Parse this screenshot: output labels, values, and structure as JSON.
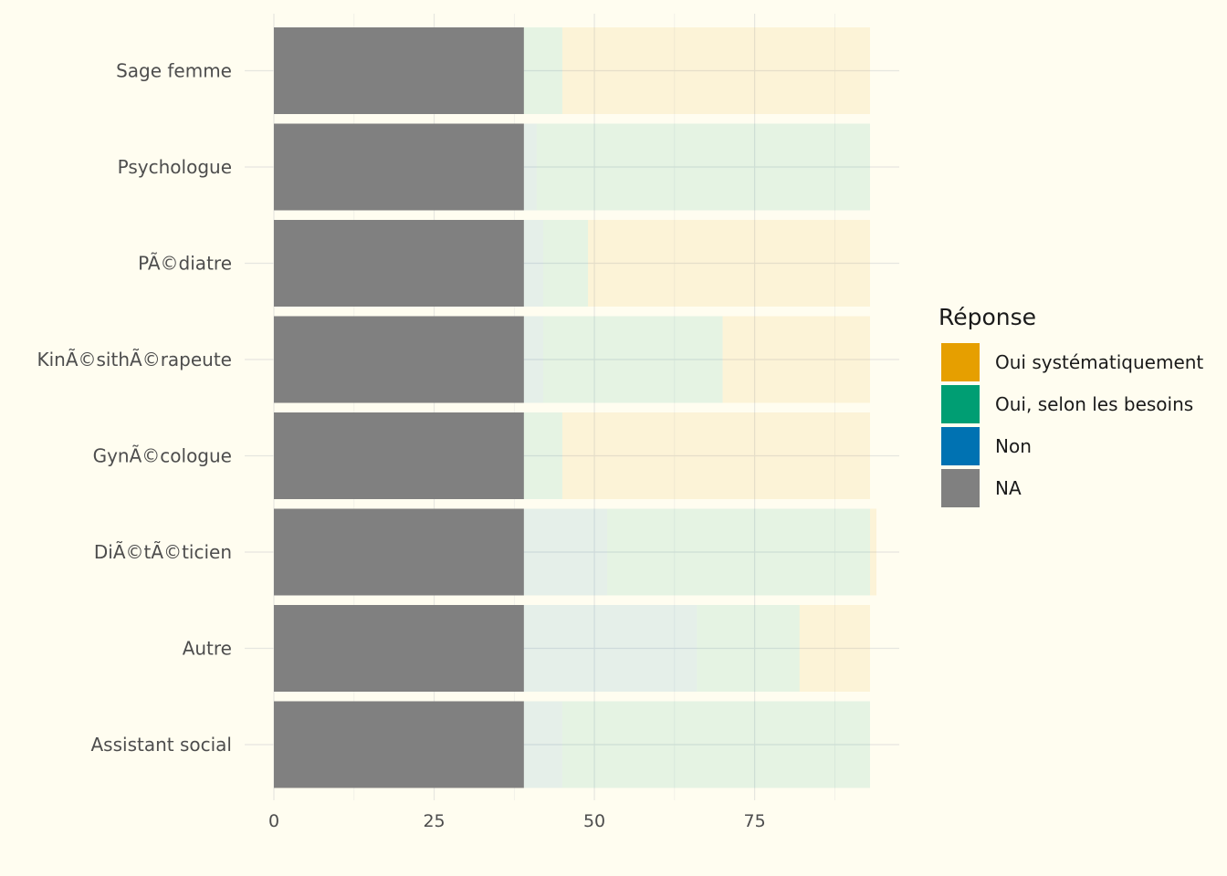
{
  "chart_data": {
    "type": "bar",
    "orientation": "horizontal",
    "stacked": true,
    "categories": [
      "Sage femme",
      "Psychologue",
      "PÃ©diatre",
      "KinÃ©sithÃ©rapeute",
      "GynÃ©cologue",
      "DiÃ©tÃ©ticien",
      "Autre",
      "Assistant social"
    ],
    "series": [
      {
        "name": "NA",
        "color": "#808080",
        "values": [
          39,
          39,
          39,
          39,
          39,
          39,
          39,
          39
        ]
      },
      {
        "name": "Non",
        "color": "#0072b2",
        "values": [
          0,
          2,
          3,
          3,
          0,
          13,
          27,
          6
        ]
      },
      {
        "name": "Oui, selon les besoins",
        "color": "#009e73",
        "values": [
          6,
          52,
          7,
          28,
          6,
          41,
          16,
          48
        ]
      },
      {
        "name": "Oui systématiquement",
        "color": "#e69f00",
        "values": [
          48,
          0,
          44,
          23,
          48,
          1,
          11,
          0
        ]
      }
    ],
    "xlim": [
      0,
      93
    ],
    "xticks": [
      "0",
      "25",
      "50",
      "75"
    ],
    "xlabel": "",
    "ylabel": "",
    "grid": true,
    "legend": {
      "title": "Réponse",
      "position": "right",
      "items": [
        {
          "label": "Oui systématiquement",
          "color": "#e69f00"
        },
        {
          "label": "Oui, selon les besoins",
          "color": "#009e73"
        },
        {
          "label": "Non",
          "color": "#0072b2"
        },
        {
          "label": "NA",
          "color": "#808080"
        }
      ]
    }
  }
}
